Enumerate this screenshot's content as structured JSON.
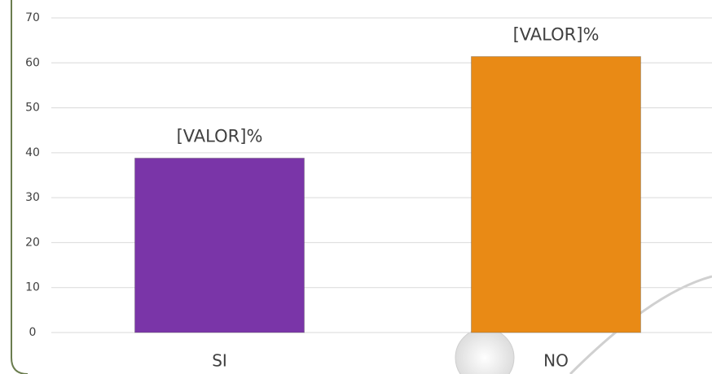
{
  "chart_data": {
    "type": "bar",
    "categories": [
      "SI",
      "NO"
    ],
    "values": [
      38.8,
      61.4
    ],
    "value_labels": [
      "[VALOR]%",
      "[VALOR]%"
    ],
    "colors": [
      "#7a35a8",
      "#e98a15"
    ],
    "ylim": [
      0,
      70
    ],
    "yticks": [
      0,
      10,
      20,
      30,
      40,
      50,
      60,
      70
    ],
    "grid": true
  }
}
